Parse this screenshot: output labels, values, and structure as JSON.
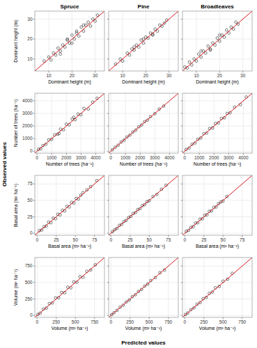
{
  "figure": {
    "x_label": "Predicted values",
    "y_label": "Observed values"
  },
  "chart_data": [
    {
      "type": "scatter",
      "title": "Spruce",
      "x_label": "Dominant height (m)",
      "y_label": "Dominant height (m)",
      "xlim": [
        4,
        34
      ],
      "ylim": [
        4,
        34
      ],
      "xticks": [
        10,
        20,
        30
      ],
      "yticks": [
        10,
        20,
        30
      ],
      "grid": true,
      "series": [
        {
          "type": "scatter",
          "color": "#222222",
          "marker": "circle-open",
          "x": [
            8,
            10,
            11,
            12,
            13,
            14,
            15,
            16,
            17,
            18,
            19,
            20,
            21,
            22,
            23,
            24,
            25,
            26,
            27,
            28,
            29,
            30,
            31,
            15,
            20,
            25,
            18,
            22
          ],
          "values": [
            9,
            11,
            9.5,
            13,
            12,
            15.5,
            14,
            17,
            16,
            20,
            18,
            22,
            20,
            24,
            21.5,
            26,
            24,
            27,
            28.5,
            26.5,
            30,
            29,
            32,
            12.5,
            18,
            27,
            19.5,
            23
          ]
        },
        {
          "type": "line",
          "color": "#d7191c",
          "line_style": "solid",
          "x": [
            4,
            34
          ],
          "values": [
            4,
            34
          ]
        }
      ]
    },
    {
      "type": "scatter",
      "title": "Pine",
      "x_label": "Dominant height (m)",
      "xlim": [
        4,
        34
      ],
      "ylim": [
        4,
        34
      ],
      "xticks": [
        10,
        20,
        30
      ],
      "yticks": [
        10,
        20,
        30
      ],
      "grid": true,
      "tick_labels": "x",
      "series": [
        {
          "type": "scatter",
          "color": "#222222",
          "marker": "circle-open",
          "x": [
            7,
            9,
            10,
            12,
            13,
            14,
            15,
            16,
            17,
            18,
            19,
            20,
            21,
            22,
            23,
            24,
            25,
            26,
            27,
            28,
            29,
            15,
            19,
            23
          ],
          "values": [
            7.5,
            10,
            9,
            13,
            12,
            15,
            14.5,
            17,
            16,
            19.5,
            18,
            21,
            20.5,
            23,
            22,
            25,
            24,
            27,
            26.5,
            28,
            29.5,
            16,
            20,
            22.5
          ]
        },
        {
          "type": "line",
          "color": "#d7191c",
          "line_style": "solid",
          "x": [
            4,
            34
          ],
          "values": [
            4,
            34
          ]
        }
      ]
    },
    {
      "type": "scatter",
      "title": "Broadleaves",
      "x_label": "Dominant height (m)",
      "xlim": [
        4,
        34
      ],
      "ylim": [
        4,
        34
      ],
      "xticks": [
        10,
        20,
        30
      ],
      "yticks": [
        10,
        20,
        30
      ],
      "grid": true,
      "tick_labels": "x",
      "series": [
        {
          "type": "scatter",
          "color": "#222222",
          "marker": "circle-open",
          "x": [
            5,
            6,
            7,
            8,
            9,
            10,
            11,
            12,
            13,
            14,
            15,
            16,
            17,
            18,
            19,
            20,
            21,
            22,
            23,
            24,
            25,
            26,
            27,
            28,
            12,
            16,
            20
          ],
          "values": [
            6,
            5.5,
            8.5,
            7,
            10,
            9,
            12.5,
            11,
            14,
            13,
            16.5,
            15,
            18,
            17,
            20.5,
            19,
            22,
            21,
            24.5,
            23,
            26,
            25,
            28.5,
            27.5,
            14,
            14.5,
            22
          ]
        },
        {
          "type": "line",
          "color": "#d7191c",
          "line_style": "solid",
          "x": [
            4,
            34
          ],
          "values": [
            4,
            34
          ]
        }
      ]
    },
    {
      "type": "scatter",
      "x_label": "Number of trees (ha⁻¹)",
      "y_label": "Number of trees (ha⁻¹)",
      "xlim": [
        -150,
        4600
      ],
      "ylim": [
        -150,
        4600
      ],
      "xticks": [
        0,
        1000,
        2000,
        3000,
        4000
      ],
      "yticks": [
        0,
        1000,
        2000,
        3000,
        4000
      ],
      "grid": true,
      "series": [
        {
          "type": "scatter",
          "color": "#222222",
          "marker": "circle-open",
          "x": [
            100,
            250,
            400,
            600,
            800,
            1000,
            1200,
            1400,
            1600,
            1800,
            2000,
            2200,
            2400,
            2600,
            2800,
            3000,
            3200,
            3500,
            3800,
            4100,
            1500,
            2500
          ],
          "values": [
            150,
            200,
            450,
            550,
            900,
            950,
            1300,
            1350,
            1750,
            1700,
            2150,
            2100,
            2550,
            2500,
            2950,
            2900,
            3400,
            3350,
            3900,
            4200,
            1400,
            2700
          ]
        },
        {
          "type": "line",
          "color": "#d7191c",
          "line_style": "solid",
          "x": [
            -150,
            4600
          ],
          "values": [
            -150,
            4600
          ]
        }
      ]
    },
    {
      "type": "scatter",
      "x_label": "Number of trees (ha⁻¹)",
      "xlim": [
        -150,
        4600
      ],
      "ylim": [
        -150,
        4600
      ],
      "xticks": [
        0,
        1000,
        2000,
        3000,
        4000
      ],
      "yticks": [
        0,
        1000,
        2000,
        3000,
        4000
      ],
      "grid": true,
      "tick_labels": "x",
      "series": [
        {
          "type": "scatter",
          "color": "#222222",
          "marker": "circle-open",
          "x": [
            100,
            300,
            500,
            700,
            900,
            1100,
            1300,
            1500,
            1700,
            1900,
            2100,
            2300,
            2500,
            2700,
            3000,
            3300,
            3600
          ],
          "values": [
            120,
            320,
            480,
            730,
            880,
            1130,
            1280,
            1530,
            1680,
            1940,
            2080,
            2350,
            2470,
            2750,
            2980,
            3350,
            3580
          ]
        },
        {
          "type": "line",
          "color": "#d7191c",
          "line_style": "solid",
          "x": [
            -150,
            4600
          ],
          "values": [
            -150,
            4600
          ]
        }
      ]
    },
    {
      "type": "scatter",
      "x_label": "Number of trees (ha⁻¹)",
      "xlim": [
        -150,
        4600
      ],
      "ylim": [
        -150,
        4600
      ],
      "xticks": [
        0,
        1000,
        2000,
        3000,
        4000
      ],
      "yticks": [
        0,
        1000,
        2000,
        3000,
        4000
      ],
      "grid": true,
      "tick_labels": "x",
      "series": [
        {
          "type": "scatter",
          "color": "#222222",
          "marker": "circle-open",
          "x": [
            100,
            300,
            500,
            700,
            900,
            1100,
            1300,
            1500,
            1700,
            1900,
            2100,
            2300,
            2500,
            2700,
            2900,
            3100,
            3400,
            3800,
            4200
          ],
          "values": [
            150,
            250,
            550,
            650,
            950,
            1050,
            1400,
            1450,
            1800,
            1850,
            2200,
            2250,
            2600,
            2650,
            3000,
            3050,
            3500,
            3700,
            4300
          ]
        },
        {
          "type": "line",
          "color": "#d7191c",
          "line_style": "solid",
          "x": [
            -150,
            4600
          ],
          "values": [
            -150,
            4600
          ]
        }
      ]
    },
    {
      "type": "scatter",
      "x_label": "Basal area (m² ha⁻¹)",
      "y_label": "Basal area (m² ha⁻¹)",
      "xlim": [
        -3,
        88
      ],
      "ylim": [
        -3,
        88
      ],
      "xticks": [
        0,
        25,
        50,
        75
      ],
      "yticks": [
        0,
        25,
        50,
        75
      ],
      "grid": true,
      "series": [
        {
          "type": "scatter",
          "color": "#222222",
          "marker": "circle-open",
          "x": [
            3,
            6,
            9,
            12,
            15,
            18,
            21,
            24,
            27,
            30,
            33,
            36,
            39,
            42,
            45,
            48,
            51,
            54,
            57,
            60,
            65,
            70,
            78
          ],
          "values": [
            4,
            5,
            10,
            11,
            17,
            16,
            23,
            22,
            29,
            28,
            35,
            34,
            41,
            40,
            47,
            46,
            53,
            52,
            58,
            62,
            66,
            71,
            80
          ]
        },
        {
          "type": "line",
          "color": "#d7191c",
          "line_style": "solid",
          "x": [
            -3,
            88
          ],
          "values": [
            -3,
            88
          ]
        }
      ]
    },
    {
      "type": "scatter",
      "x_label": "Basal area (m² ha⁻¹)",
      "xlim": [
        -3,
        88
      ],
      "ylim": [
        -3,
        88
      ],
      "xticks": [
        0,
        25,
        50,
        75
      ],
      "yticks": [
        0,
        25,
        50,
        75
      ],
      "grid": true,
      "tick_labels": "x",
      "series": [
        {
          "type": "scatter",
          "color": "#222222",
          "marker": "circle-open",
          "x": [
            2,
            5,
            8,
            11,
            14,
            17,
            20,
            23,
            26,
            29,
            32,
            35,
            38,
            41,
            44,
            47,
            50,
            55,
            60,
            66,
            72
          ],
          "values": [
            2.5,
            5.5,
            7.5,
            12,
            13.5,
            18,
            19.5,
            24,
            25.5,
            30,
            31.5,
            36,
            37.5,
            42,
            43.5,
            48,
            49.5,
            56,
            59,
            67,
            73
          ]
        },
        {
          "type": "line",
          "color": "#d7191c",
          "line_style": "solid",
          "x": [
            -3,
            88
          ],
          "values": [
            -3,
            88
          ]
        }
      ]
    },
    {
      "type": "scatter",
      "x_label": "Basal area (m² ha⁻¹)",
      "xlim": [
        -3,
        88
      ],
      "ylim": [
        -3,
        88
      ],
      "xticks": [
        0,
        25,
        50,
        75
      ],
      "yticks": [
        0,
        25,
        50,
        75
      ],
      "grid": true,
      "tick_labels": "x",
      "series": [
        {
          "type": "scatter",
          "color": "#222222",
          "marker": "circle-open",
          "x": [
            2,
            5,
            8,
            11,
            14,
            17,
            20,
            23,
            26,
            29,
            32,
            35,
            38,
            41,
            44,
            47,
            50,
            55
          ],
          "values": [
            3,
            4.5,
            9,
            10,
            15.5,
            16,
            21.5,
            22,
            27.5,
            28,
            33.5,
            34,
            39.5,
            40,
            45,
            47.5,
            49,
            56
          ]
        },
        {
          "type": "line",
          "color": "#d7191c",
          "line_style": "solid",
          "x": [
            -3,
            88
          ],
          "values": [
            -3,
            88
          ]
        }
      ]
    },
    {
      "type": "scatter",
      "x_label": "Volume (m³ ha⁻¹)",
      "y_label": "Volume (m³ ha⁻¹)",
      "xlim": [
        -30,
        880
      ],
      "ylim": [
        -30,
        880
      ],
      "xticks": [
        0,
        250,
        500,
        750
      ],
      "yticks": [
        0,
        250,
        500,
        750
      ],
      "grid": true,
      "series": [
        {
          "type": "scatter",
          "color": "#222222",
          "marker": "circle-open",
          "x": [
            10,
            40,
            80,
            120,
            160,
            200,
            240,
            280,
            320,
            360,
            400,
            440,
            480,
            520,
            560,
            600,
            650,
            700,
            760
          ],
          "values": [
            15,
            35,
            95,
            110,
            180,
            190,
            265,
            270,
            350,
            345,
            430,
            420,
            510,
            505,
            590,
            580,
            670,
            690,
            770
          ]
        },
        {
          "type": "line",
          "color": "#d7191c",
          "line_style": "solid",
          "x": [
            -30,
            880
          ],
          "values": [
            -30,
            880
          ]
        }
      ]
    },
    {
      "type": "scatter",
      "x_label": "Volume (m³ ha⁻¹)",
      "xlim": [
        -30,
        880
      ],
      "ylim": [
        -30,
        880
      ],
      "xticks": [
        0,
        250,
        500,
        750
      ],
      "yticks": [
        0,
        250,
        500,
        750
      ],
      "grid": true,
      "tick_labels": "x",
      "series": [
        {
          "type": "scatter",
          "color": "#222222",
          "marker": "circle-open",
          "x": [
            10,
            40,
            80,
            120,
            160,
            200,
            240,
            280,
            320,
            360,
            400,
            440,
            480,
            520,
            580,
            640,
            700
          ],
          "values": [
            12,
            42,
            78,
            125,
            155,
            205,
            235,
            285,
            315,
            365,
            395,
            445,
            475,
            530,
            575,
            650,
            690
          ]
        },
        {
          "type": "line",
          "color": "#d7191c",
          "line_style": "solid",
          "x": [
            -30,
            880
          ],
          "values": [
            -30,
            880
          ]
        }
      ]
    },
    {
      "type": "scatter",
      "x_label": "Volume (m³ ha⁻¹)",
      "xlim": [
        -30,
        880
      ],
      "ylim": [
        -30,
        880
      ],
      "xticks": [
        0,
        250,
        500,
        750
      ],
      "yticks": [
        0,
        250,
        500,
        750
      ],
      "grid": true,
      "tick_labels": "x",
      "series": [
        {
          "type": "scatter",
          "color": "#222222",
          "marker": "circle-open",
          "x": [
            10,
            40,
            80,
            120,
            160,
            200,
            240,
            280,
            320,
            360,
            400,
            450,
            500,
            560,
            620
          ],
          "values": [
            14,
            38,
            88,
            115,
            170,
            195,
            255,
            275,
            335,
            355,
            420,
            440,
            520,
            550,
            640
          ]
        },
        {
          "type": "line",
          "color": "#d7191c",
          "line_style": "solid",
          "x": [
            -30,
            880
          ],
          "values": [
            -30,
            880
          ]
        }
      ]
    }
  ]
}
